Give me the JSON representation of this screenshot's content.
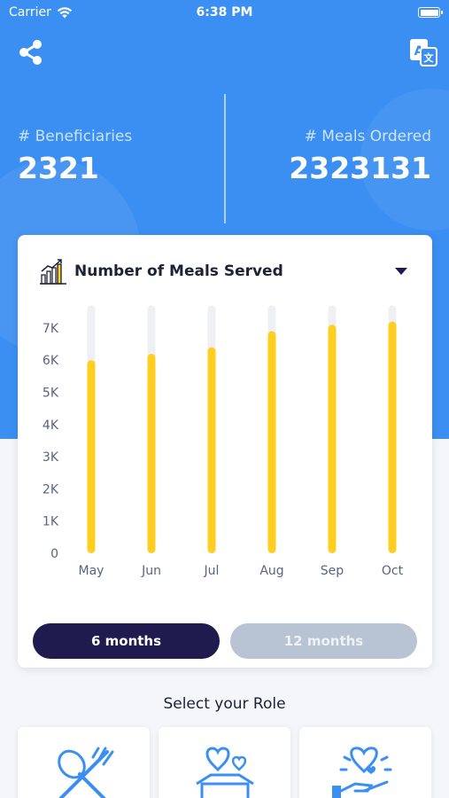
{
  "status_bar": {
    "carrier": "Carrier",
    "time": "6:38 PM"
  },
  "header": {
    "share_icon": "share-icon",
    "translate_icon": "translate-icon",
    "stats": [
      {
        "label": "# Beneficiaries",
        "value": "2321"
      },
      {
        "label": "# Meals Ordered",
        "value": "2323131"
      }
    ]
  },
  "chart_card": {
    "title": "Number of Meals Served",
    "icon": "bar-chart-growth-icon",
    "toggle": {
      "six_months": "6 months",
      "twelve_months": "12 months",
      "selected": "6 months"
    }
  },
  "chart_data": {
    "type": "bar",
    "title": "Number of Meals Served",
    "categories": [
      "May",
      "Jun",
      "Jul",
      "Aug",
      "Sep",
      "Oct"
    ],
    "values": [
      6000,
      6200,
      6400,
      6900,
      7100,
      7200
    ],
    "max_track": 7700,
    "yticks": [
      "0",
      "1K",
      "2K",
      "3K",
      "4K",
      "5K",
      "6K",
      "7K"
    ],
    "ylim": [
      0,
      7700
    ],
    "grid": false,
    "bar_color": "#ffce1f",
    "track_color": "#eef0f4"
  },
  "roles": {
    "title": "Select your Role",
    "items": [
      {
        "name": "fork-spoon-icon"
      },
      {
        "name": "donation-box-icon"
      },
      {
        "name": "hand-heart-icon"
      }
    ]
  },
  "colors": {
    "primary_blue": "#3b8ff2",
    "navy": "#1f1b4e",
    "bar": "#ffce1f"
  }
}
